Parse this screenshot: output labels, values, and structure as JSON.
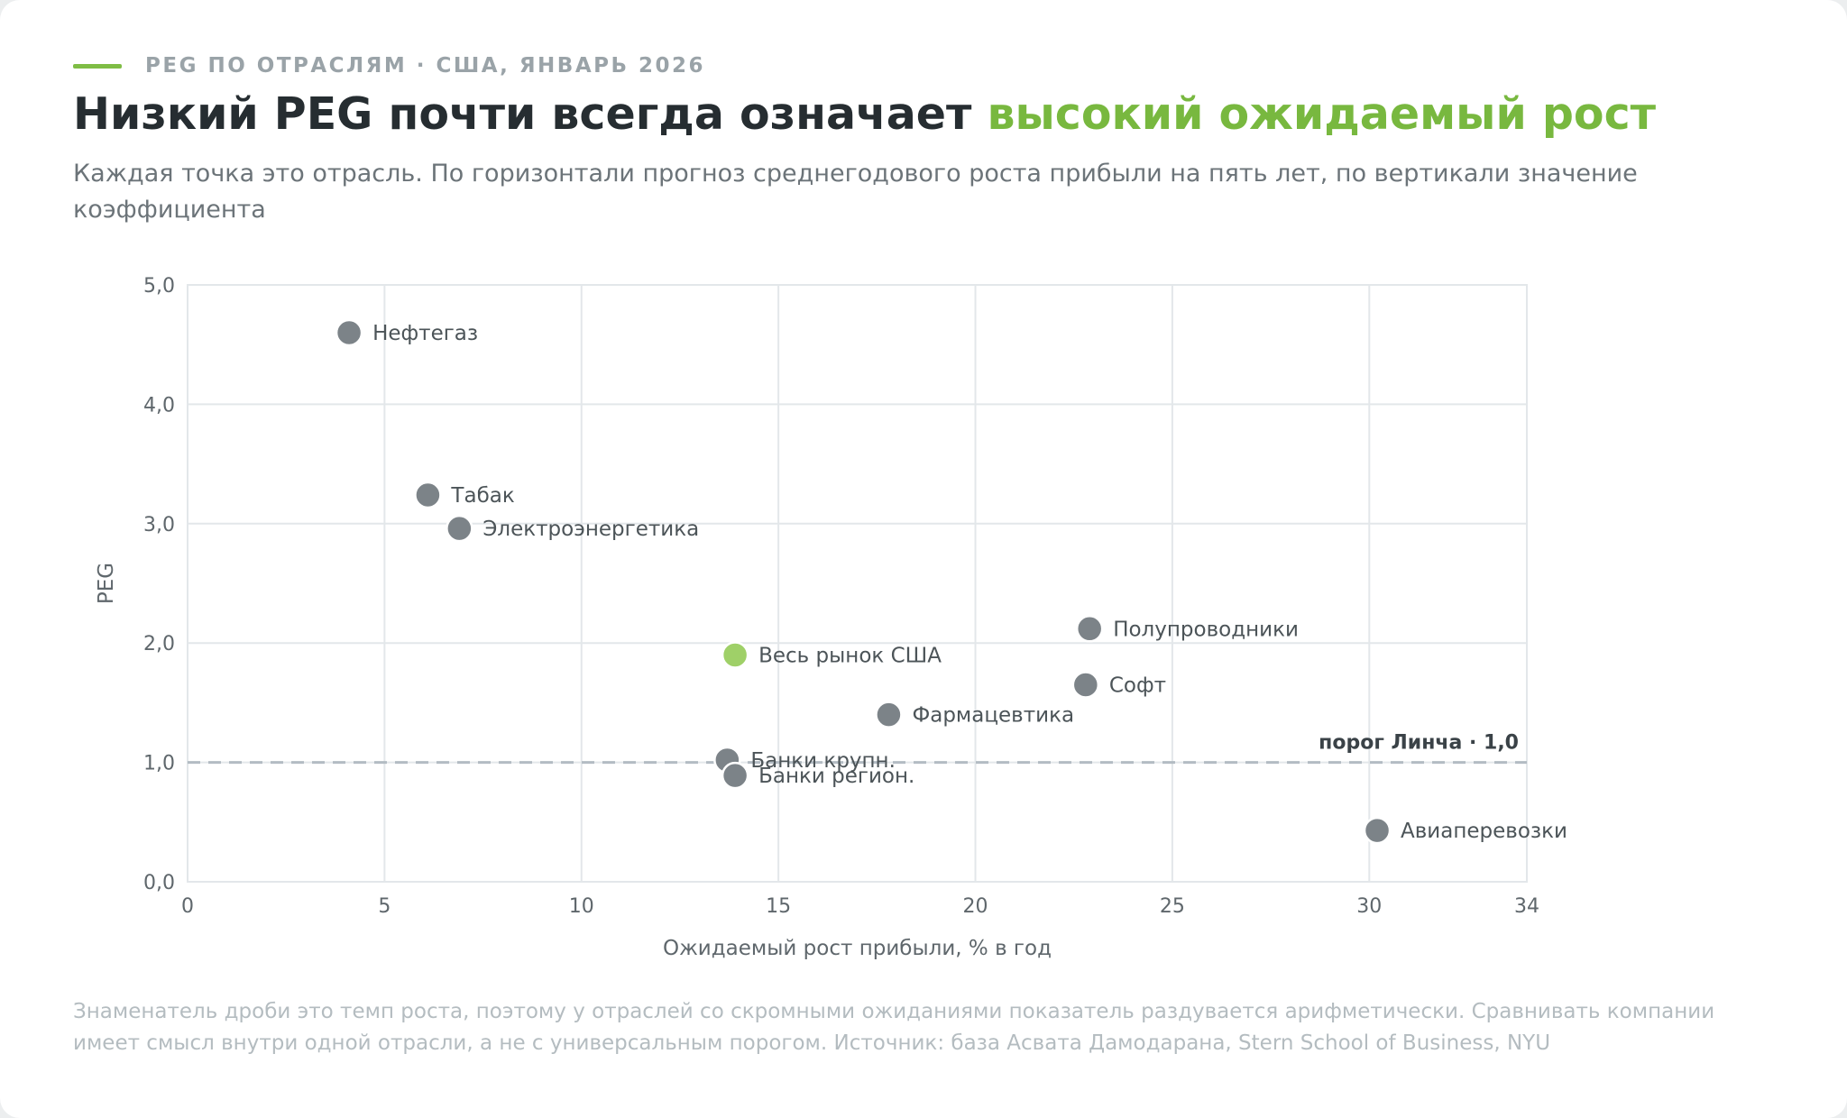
{
  "header": {
    "kicker": "PEG ПО ОТРАСЛЯМ · США, ЯНВАРЬ 2026",
    "title_main": "Низкий PEG почти всегда означает ",
    "title_accent": "высокий ожидаемый рост",
    "subtitle": "Каждая точка это отрасль. По горизонтали прогноз среднегодового роста прибыли на пять лет, по вертикали значение коэффициента"
  },
  "footnote": "Знаменатель дроби это темп роста, поэтому у отраслей со скромными ожиданиями показатель раздувается арифметически. Сравнивать компании имеет смысл внутри одной отрасли, а не с универсальным порогом. Источник: база Асвата Дамодарана, Stern School of Business, NYU",
  "colors": {
    "point": "#7c8388",
    "highlight": "#9fd068",
    "accent": "#78b83f",
    "threshold": "#b3bcc3",
    "grid": "#e3e7ea"
  },
  "chart_data": {
    "type": "scatter",
    "xlabel": "Ожидаемый рост прибыли, % в год",
    "ylabel": "PEG",
    "xlim": [
      0,
      34
    ],
    "ylim": [
      0,
      5
    ],
    "x_ticks": [
      0,
      5,
      10,
      15,
      20,
      25,
      30,
      34
    ],
    "y_ticks": [
      "0,0",
      "1,0",
      "2,0",
      "3,0",
      "4,0",
      "5,0"
    ],
    "y_tick_values": [
      0,
      1,
      2,
      3,
      4,
      5
    ],
    "grid": true,
    "threshold": {
      "value": 1.0,
      "label": "порог Линча · 1,0"
    },
    "points": [
      {
        "label": "Нефтегаз",
        "x": 4.1,
        "y": 4.6
      },
      {
        "label": "Табак",
        "x": 6.1,
        "y": 3.24
      },
      {
        "label": "Электроэнергетика",
        "x": 6.9,
        "y": 2.96
      },
      {
        "label": "Полупроводники",
        "x": 22.9,
        "y": 2.12
      },
      {
        "label": "Весь рынок США",
        "x": 13.9,
        "y": 1.9,
        "highlight": true
      },
      {
        "label": "Софт",
        "x": 22.8,
        "y": 1.65
      },
      {
        "label": "Фармацевтика",
        "x": 17.8,
        "y": 1.4
      },
      {
        "label": "Банки крупн.",
        "x": 13.7,
        "y": 1.02
      },
      {
        "label": "Банки регион.",
        "x": 13.9,
        "y": 0.89
      },
      {
        "label": "Авиаперевозки",
        "x": 30.2,
        "y": 0.43
      }
    ]
  }
}
